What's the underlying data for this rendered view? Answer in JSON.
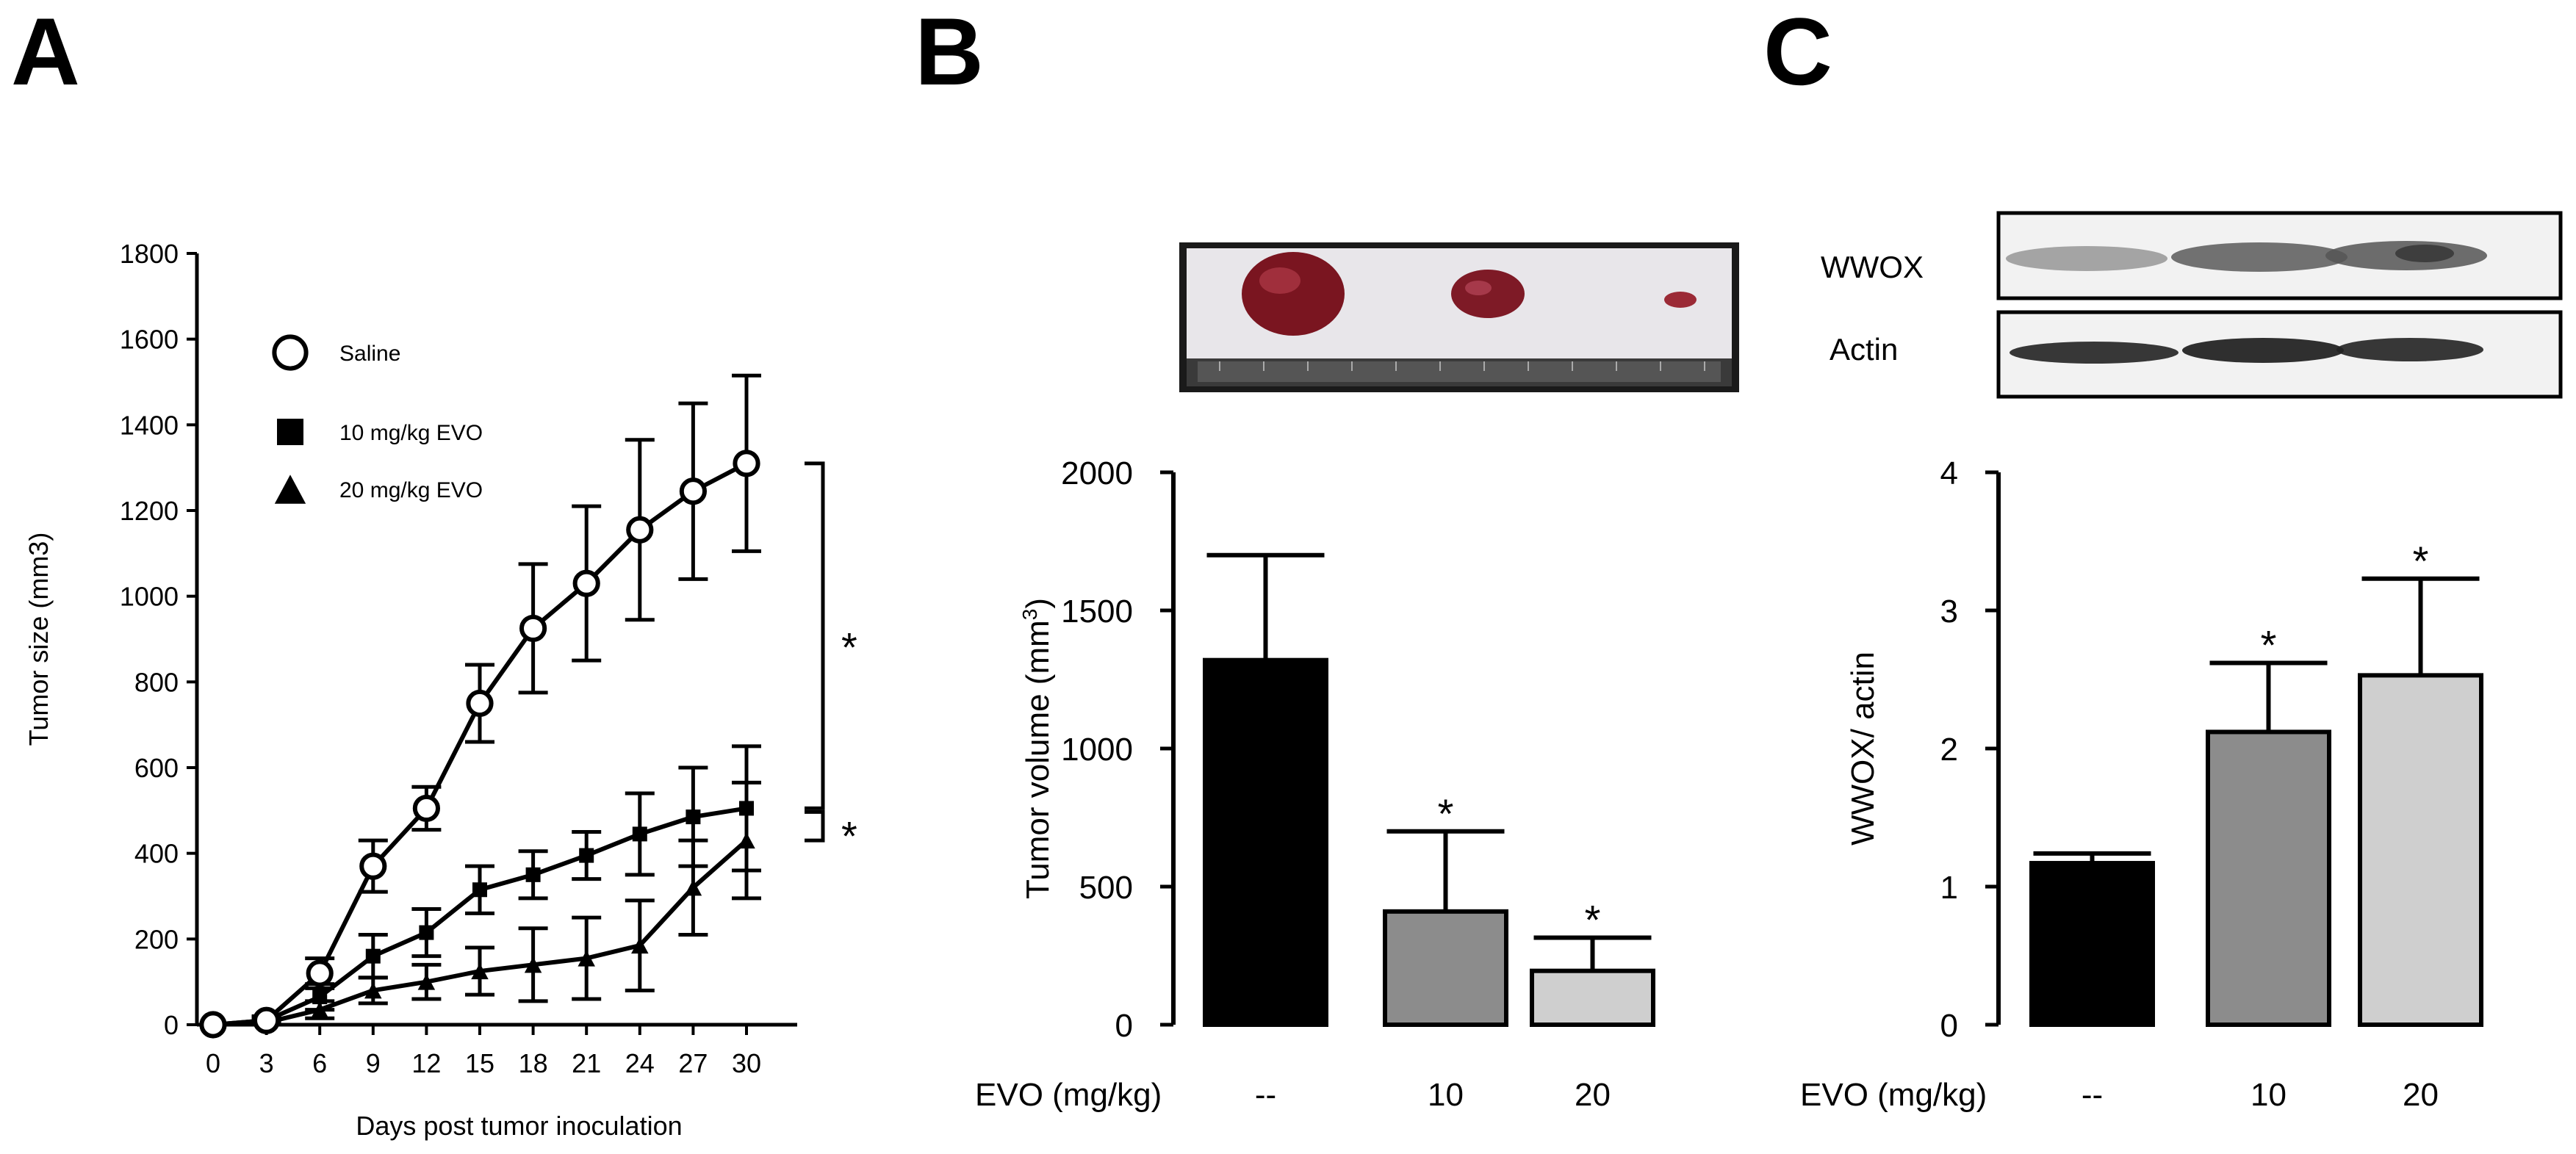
{
  "panels": {
    "A": {
      "letter": "A"
    },
    "B": {
      "letter": "B"
    },
    "C": {
      "letter": "C",
      "blot_labels": [
        "WWOX",
        "Actin"
      ]
    }
  },
  "chart_data": [
    {
      "panel": "A",
      "type": "line",
      "title": "",
      "xlabel": "Days post tumor inoculation",
      "ylabel": "Tumor size (mm3)",
      "x": [
        0,
        3,
        6,
        9,
        12,
        15,
        18,
        21,
        24,
        27,
        30
      ],
      "x_ticks": [
        0,
        3,
        6,
        9,
        12,
        15,
        18,
        21,
        24,
        27,
        30
      ],
      "y_ticks": [
        0,
        200,
        400,
        600,
        800,
        1000,
        1200,
        1400,
        1600,
        1800
      ],
      "ylim": [
        0,
        1800
      ],
      "legend_position": "top-left",
      "series": [
        {
          "name": "Saline",
          "marker": "open-circle",
          "values": [
            0,
            10,
            120,
            370,
            505,
            750,
            925,
            1030,
            1155,
            1245,
            1310
          ],
          "errors": [
            0,
            10,
            35,
            60,
            50,
            90,
            150,
            180,
            210,
            205,
            205
          ]
        },
        {
          "name": "10 mg/kg EVO",
          "marker": "filled-square",
          "values": [
            0,
            10,
            65,
            160,
            215,
            315,
            350,
            395,
            445,
            485,
            505
          ],
          "errors": [
            0,
            8,
            30,
            50,
            55,
            55,
            55,
            55,
            95,
            115,
            145
          ]
        },
        {
          "name": "20 mg/kg EVO",
          "marker": "filled-triangle",
          "values": [
            0,
            5,
            35,
            80,
            100,
            125,
            140,
            155,
            185,
            320,
            430
          ],
          "errors": [
            0,
            5,
            20,
            30,
            40,
            55,
            85,
            95,
            105,
            110,
            135
          ]
        }
      ],
      "significance": [
        {
          "label": "*",
          "between": [
            "Saline",
            "10 mg/kg EVO"
          ]
        },
        {
          "label": "*",
          "between": [
            "10 mg/kg EVO",
            "20 mg/kg EVO"
          ]
        }
      ]
    },
    {
      "panel": "B",
      "type": "bar",
      "title": "",
      "xlabel": "EVO (mg/kg)",
      "ylabel": "Tumor volume (mm",
      "ylabel_superscript": "3",
      "ylabel_suffix": ")",
      "categories": [
        "--",
        "10",
        "20"
      ],
      "values": [
        1320,
        410,
        195
      ],
      "errors": [
        380,
        290,
        120
      ],
      "significance": [
        "",
        "*",
        "*"
      ],
      "y_ticks": [
        0,
        500,
        1000,
        1500,
        2000
      ],
      "ylim": [
        0,
        2000
      ],
      "bar_colors": [
        "#000000",
        "#8c8c8c",
        "#cfcfcf"
      ]
    },
    {
      "panel": "C",
      "type": "bar",
      "title": "",
      "xlabel": "EVO (mg/kg)",
      "ylabel": "WWOX/ actin",
      "categories": [
        "--",
        "10",
        "20"
      ],
      "values": [
        1.17,
        2.12,
        2.53
      ],
      "errors": [
        0.07,
        0.5,
        0.7
      ],
      "significance": [
        "",
        "*",
        "*"
      ],
      "y_ticks": [
        0,
        1,
        2,
        3,
        4
      ],
      "ylim": [
        0,
        4
      ],
      "bar_colors": [
        "#000000",
        "#8c8c8c",
        "#cfcfcf"
      ]
    }
  ]
}
